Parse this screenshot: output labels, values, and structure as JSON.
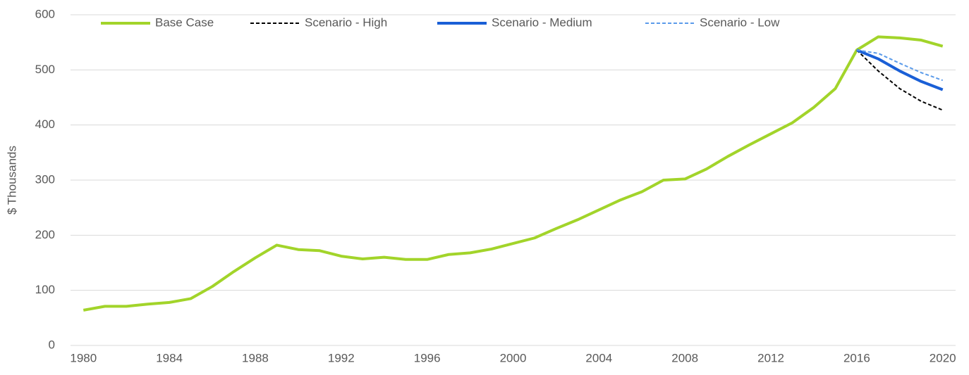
{
  "chart_data": {
    "type": "line",
    "y_label": "$ Thousands",
    "x": [
      1980,
      1981,
      1982,
      1983,
      1984,
      1985,
      1986,
      1987,
      1988,
      1989,
      1990,
      1991,
      1992,
      1993,
      1994,
      1995,
      1996,
      1997,
      1998,
      1999,
      2000,
      2001,
      2002,
      2003,
      2004,
      2005,
      2006,
      2007,
      2008,
      2009,
      2010,
      2011,
      2012,
      2013,
      2014,
      2015,
      2016,
      2017,
      2018,
      2019,
      2020
    ],
    "series": [
      {
        "name": "Base Case",
        "color": "#a2d42a",
        "line_style": "solid",
        "values": [
          64,
          71,
          71,
          75,
          78,
          85,
          107,
          134,
          159,
          182,
          174,
          172,
          162,
          157,
          160,
          156,
          156,
          165,
          168,
          175,
          185,
          195,
          212,
          228,
          246,
          264,
          279,
          300,
          302,
          320,
          343,
          364,
          384,
          404,
          432,
          466,
          536,
          560,
          558,
          554,
          543
        ]
      },
      {
        "name": "Scenario - High",
        "color": "#000000",
        "line_style": "dashed",
        "values": [
          null,
          null,
          null,
          null,
          null,
          null,
          null,
          null,
          null,
          null,
          null,
          null,
          null,
          null,
          null,
          null,
          null,
          null,
          null,
          null,
          null,
          null,
          null,
          null,
          null,
          null,
          null,
          null,
          null,
          null,
          null,
          null,
          null,
          null,
          null,
          null,
          536,
          498,
          466,
          443,
          427
        ]
      },
      {
        "name": "Scenario - Medium",
        "color": "#1a5fd6",
        "line_style": "solid",
        "values": [
          null,
          null,
          null,
          null,
          null,
          null,
          null,
          null,
          null,
          null,
          null,
          null,
          null,
          null,
          null,
          null,
          null,
          null,
          null,
          null,
          null,
          null,
          null,
          null,
          null,
          null,
          null,
          null,
          null,
          null,
          null,
          null,
          null,
          null,
          null,
          null,
          536,
          520,
          498,
          479,
          464
        ]
      },
      {
        "name": "Scenario - Low",
        "color": "#5b9bea",
        "line_style": "dashed",
        "values": [
          null,
          null,
          null,
          null,
          null,
          null,
          null,
          null,
          null,
          null,
          null,
          null,
          null,
          null,
          null,
          null,
          null,
          null,
          null,
          null,
          null,
          null,
          null,
          null,
          null,
          null,
          null,
          null,
          null,
          null,
          null,
          null,
          null,
          null,
          null,
          null,
          536,
          530,
          512,
          495,
          481
        ]
      }
    ],
    "xlim": [
      1979.4,
      2020.6
    ],
    "xticks": [
      1980,
      1984,
      1988,
      1992,
      1996,
      2000,
      2004,
      2008,
      2012,
      2016,
      2020
    ],
    "ylim": [
      0,
      600
    ],
    "yticks": [
      0,
      100,
      200,
      300,
      400,
      500,
      600
    ],
    "grid": true,
    "legend": "top"
  }
}
